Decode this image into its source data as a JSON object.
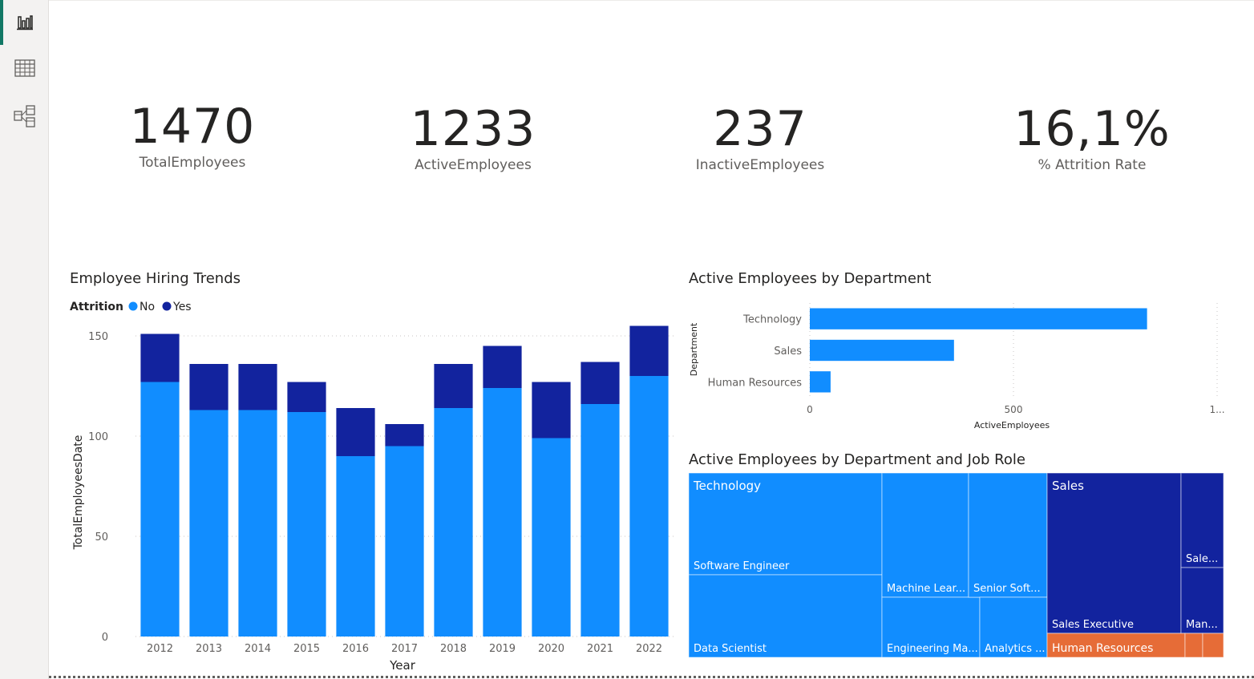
{
  "nav": {
    "items": [
      {
        "name": "report-view-icon",
        "active": true
      },
      {
        "name": "data-view-icon",
        "active": false
      },
      {
        "name": "model-view-icon",
        "active": false
      }
    ]
  },
  "kpis": [
    {
      "value": "1470",
      "label": "TotalEmployees"
    },
    {
      "value": "1233",
      "label": "ActiveEmployees"
    },
    {
      "value": "237",
      "label": "InactiveEmployees"
    },
    {
      "value": "16,1%",
      "label": "% Attrition Rate"
    }
  ],
  "colors": {
    "no": "#118dff",
    "yes": "#12239e",
    "human_resources": "#e66c37",
    "grid": "#c8c6c4",
    "axis_text": "#605e5c"
  },
  "chart_data": [
    {
      "type": "bar",
      "stacked": true,
      "title": "Employee Hiring Trends",
      "legend_title": "Attrition",
      "legend_position": "top-left",
      "xlabel": "Year",
      "ylabel": "TotalEmployeesDate",
      "categories": [
        "2012",
        "2013",
        "2014",
        "2015",
        "2016",
        "2017",
        "2018",
        "2019",
        "2020",
        "2021",
        "2022"
      ],
      "series": [
        {
          "name": "No",
          "values": [
            127,
            113,
            113,
            112,
            90,
            95,
            114,
            124,
            99,
            116,
            130
          ]
        },
        {
          "name": "Yes",
          "values": [
            24,
            23,
            23,
            15,
            24,
            11,
            22,
            21,
            28,
            21,
            25
          ]
        }
      ],
      "ylim": [
        0,
        160
      ],
      "yticks": [
        "0",
        "50",
        "100",
        "150"
      ],
      "grid": true
    },
    {
      "type": "bar",
      "orientation": "horizontal",
      "title": "Active Employees by Department",
      "xlabel": "ActiveEmployees",
      "ylabel": "Department",
      "categories": [
        "Technology",
        "Sales",
        "Human Resources"
      ],
      "values": [
        828,
        354,
        51
      ],
      "xlim": [
        0,
        1000
      ],
      "xticks": [
        "0",
        "500",
        "1..."
      ],
      "grid": true
    },
    {
      "type": "treemap",
      "title": "Active Employees by Department and Job Role",
      "groups": [
        {
          "name": "Technology",
          "items": [
            {
              "label": "Software Engineer"
            },
            {
              "label": "Data Scientist"
            },
            {
              "label": "Machine Lear..."
            },
            {
              "label": "Engineering Ma..."
            },
            {
              "label": "Senior Soft..."
            },
            {
              "label": "Analytics ..."
            }
          ]
        },
        {
          "name": "Sales",
          "items": [
            {
              "label": "Sales Executive"
            },
            {
              "label": "Sale..."
            },
            {
              "label": "Man..."
            }
          ]
        },
        {
          "name": "Human Resources",
          "items": [
            {
              "label": ""
            },
            {
              "label": ""
            },
            {
              "label": ""
            }
          ]
        }
      ]
    }
  ]
}
